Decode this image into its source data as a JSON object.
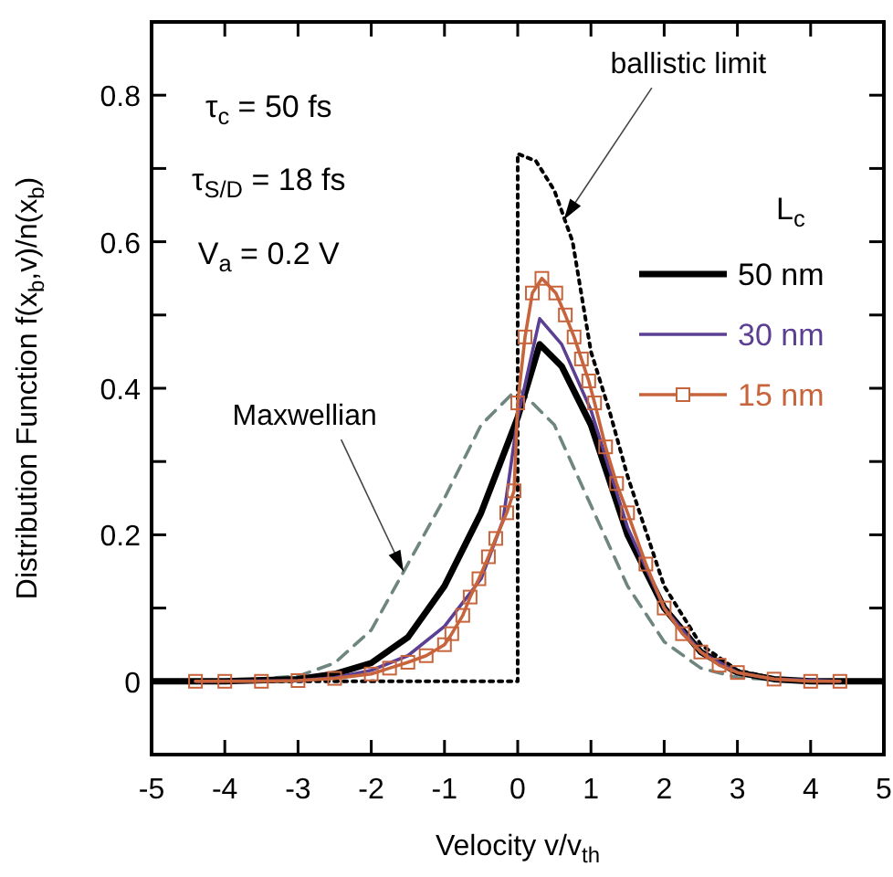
{
  "chart_data": {
    "type": "line",
    "xlabel": "Velocity  v/v$_{th}$",
    "ylabel": "Distribution Function  f(x$_{b}$,v)/n(x$_{b}$)",
    "legend_title": "L$_{c}$",
    "legend": "right",
    "grid": false,
    "xlim": [
      -5,
      5
    ],
    "xticks": [
      -5,
      -4,
      -3,
      -2,
      -1,
      0,
      1,
      2,
      3,
      4,
      5
    ],
    "ylim": [
      -0.1,
      0.9
    ],
    "yticks": [
      0,
      {
        "value": 0.1,
        "label": null
      },
      {
        "value": 0.2,
        "label": "0.2"
      },
      {
        "value": 0.3,
        "label": null
      },
      {
        "value": 0.4,
        "label": "0.4"
      },
      {
        "value": 0.5,
        "label": null
      },
      {
        "value": 0.6,
        "label": "0.6"
      },
      {
        "value": 0.7,
        "label": null
      },
      {
        "value": 0.8,
        "label": "0.8"
      }
    ],
    "annotations": [
      "τ$_{c}$ = 50 fs",
      "τ$_{S/D}$ = 18 fs",
      "V$_{a}$ = 0.2 V",
      {
        "text": "ballistic limit",
        "x": 0.63,
        "y": 0.63
      },
      {
        "text": "Maxwellian",
        "x": -1.56,
        "y": 0.15
      }
    ],
    "series": [
      {
        "color": "#6f8680",
        "line_style": "dashed",
        "marker": "none",
        "x": [
          -4.5,
          -4,
          -3,
          -2.5,
          -2,
          -1.5,
          -1,
          -0.5,
          0,
          0.5,
          1,
          1.5,
          2,
          2.5,
          3,
          4,
          4.5
        ],
        "values": [
          0,
          0,
          0.007,
          0.025,
          0.07,
          0.16,
          0.25,
          0.35,
          0.4,
          0.35,
          0.24,
          0.13,
          0.054,
          0.018,
          0.005,
          0,
          0
        ]
      },
      {
        "color": "#000000",
        "line_style": "dotted",
        "marker": "none",
        "x": [
          -4.5,
          0,
          0,
          0.25,
          0.5,
          0.75,
          1,
          1.25,
          1.5,
          2,
          2.5,
          3,
          3.5,
          4,
          4.5
        ],
        "values": [
          0,
          0,
          0.72,
          0.71,
          0.67,
          0.6,
          0.45,
          0.37,
          0.28,
          0.13,
          0.05,
          0.015,
          0.004,
          0,
          0
        ]
      },
      {
        "name": "50 nm",
        "color": "#000000",
        "line_style": "solid",
        "marker": "none",
        "x": [
          -5,
          -4,
          -3,
          -2.5,
          -2,
          -1.5,
          -1,
          -0.5,
          0,
          0.3,
          0.6,
          1,
          1.5,
          2,
          2.5,
          3,
          3.5,
          4,
          5
        ],
        "values": [
          0,
          0,
          0.003,
          0.01,
          0.025,
          0.06,
          0.13,
          0.23,
          0.36,
          0.46,
          0.43,
          0.35,
          0.2,
          0.1,
          0.04,
          0.012,
          0.003,
          0,
          0
        ]
      },
      {
        "name": "30 nm",
        "color": "#5b3f93",
        "line_style": "solid",
        "marker": "none",
        "x": [
          -4.4,
          -3,
          -2.5,
          -2,
          -1.5,
          -1,
          -0.5,
          -0.2,
          0,
          0.3,
          0.6,
          1,
          1.5,
          2,
          2.5,
          3,
          3.5,
          4.4
        ],
        "values": [
          0,
          0.001,
          0.005,
          0.015,
          0.035,
          0.075,
          0.14,
          0.22,
          0.36,
          0.495,
          0.46,
          0.37,
          0.21,
          0.1,
          0.04,
          0.012,
          0.003,
          0
        ]
      },
      {
        "name": "15 nm",
        "color": "#c8643c",
        "line_style": "solid",
        "marker": "square",
        "x": [
          -4.4,
          -4,
          -3.5,
          -3,
          -2.5,
          -2,
          -1.75,
          -1.5,
          -1.25,
          -1,
          -0.9,
          -0.75,
          -0.65,
          -0.53,
          -0.4,
          -0.3,
          -0.15,
          -0.05,
          0,
          0.1,
          0.2,
          0.33,
          0.52,
          0.65,
          0.77,
          0.87,
          0.97,
          1.05,
          1.2,
          1.35,
          1.5,
          1.75,
          2,
          2.25,
          2.5,
          2.75,
          3,
          3.5,
          4,
          4.4
        ],
        "values": [
          0,
          0,
          0,
          0.001,
          0.004,
          0.01,
          0.018,
          0.026,
          0.035,
          0.05,
          0.065,
          0.09,
          0.115,
          0.14,
          0.17,
          0.195,
          0.23,
          0.26,
          0.38,
          0.47,
          0.53,
          0.55,
          0.53,
          0.5,
          0.47,
          0.44,
          0.41,
          0.38,
          0.32,
          0.27,
          0.23,
          0.16,
          0.1,
          0.065,
          0.04,
          0.022,
          0.012,
          0.003,
          0,
          0
        ]
      }
    ]
  }
}
